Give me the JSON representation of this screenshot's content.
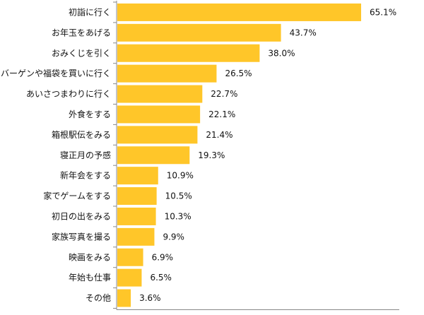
{
  "chart_data": {
    "type": "bar",
    "orientation": "horizontal",
    "title": "",
    "xlabel": "",
    "ylabel": "",
    "grid": false,
    "xlim": [
      0,
      75
    ],
    "unit_suffix": "%",
    "bar_color": "#ffc629",
    "axis_color": "#888888",
    "categories": [
      "初詣に行く",
      "お年玉をあげる",
      "おみくじを引く",
      "バーゲンや福袋を買いに行く",
      "あいさつまわりに行く",
      "外食をする",
      "箱根駅伝をみる",
      "寝正月の予感",
      "新年会をする",
      "家でゲームをする",
      "初日の出をみる",
      "家族写真を撮る",
      "映画をみる",
      "年始も仕事",
      "その他"
    ],
    "values": [
      65.1,
      43.7,
      38.0,
      26.5,
      22.7,
      22.1,
      21.4,
      19.3,
      10.9,
      10.5,
      10.3,
      9.9,
      6.9,
      6.5,
      3.6
    ],
    "value_labels": [
      "65.1%",
      "43.7%",
      "38.0%",
      "26.5%",
      "22.7%",
      "22.1%",
      "21.4%",
      "19.3%",
      "10.9%",
      "10.5%",
      "10.3%",
      "9.9%",
      "6.9%",
      "6.5%",
      "3.6%"
    ]
  }
}
